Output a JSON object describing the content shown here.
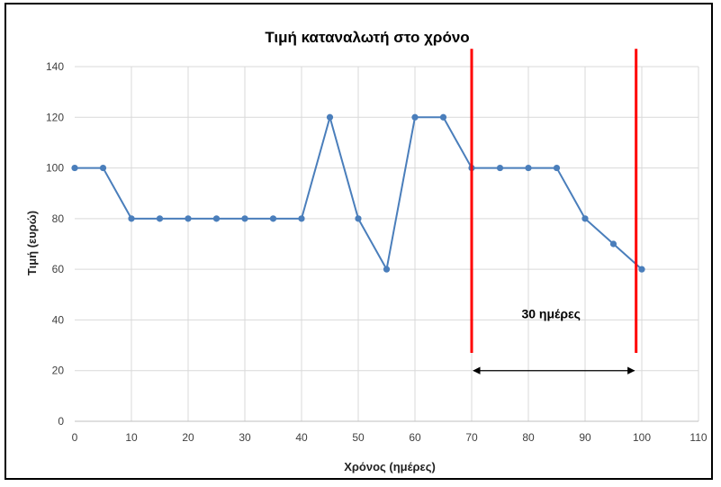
{
  "chart_data": {
    "type": "line",
    "title": "Τιμή καταναλωτή στο χρόνο",
    "xlabel": "Χρόνος (ημέρες)",
    "ylabel": "Τιμή (ευρώ)",
    "xlim": [
      0,
      110
    ],
    "ylim": [
      0,
      140
    ],
    "xticks": [
      0,
      10,
      20,
      30,
      40,
      50,
      60,
      70,
      80,
      90,
      100,
      110
    ],
    "yticks": [
      0,
      20,
      40,
      60,
      80,
      100,
      120,
      140
    ],
    "grid": true,
    "series": [
      {
        "x": [
          0,
          5,
          10,
          15,
          20,
          25,
          30,
          35,
          40,
          45,
          50,
          55,
          60,
          65,
          70,
          75,
          80,
          85,
          90,
          95,
          100
        ],
        "y": [
          100,
          100,
          80,
          80,
          80,
          80,
          80,
          80,
          80,
          120,
          80,
          60,
          120,
          120,
          100,
          100,
          100,
          100,
          80,
          70,
          60
        ],
        "color": "#4a7ebb"
      }
    ],
    "annotations": {
      "vertical_lines": [
        {
          "x": 70,
          "y_from": 27,
          "y_to": 147,
          "color": "#ff0000"
        },
        {
          "x": 99,
          "y_from": 27,
          "y_to": 147,
          "color": "#ff0000"
        }
      ],
      "arrow": {
        "x_from": 70,
        "x_to": 99,
        "y": 20,
        "color": "#000000"
      },
      "label": {
        "text": "30 ημέρες",
        "x": 84,
        "y": 40
      }
    }
  }
}
